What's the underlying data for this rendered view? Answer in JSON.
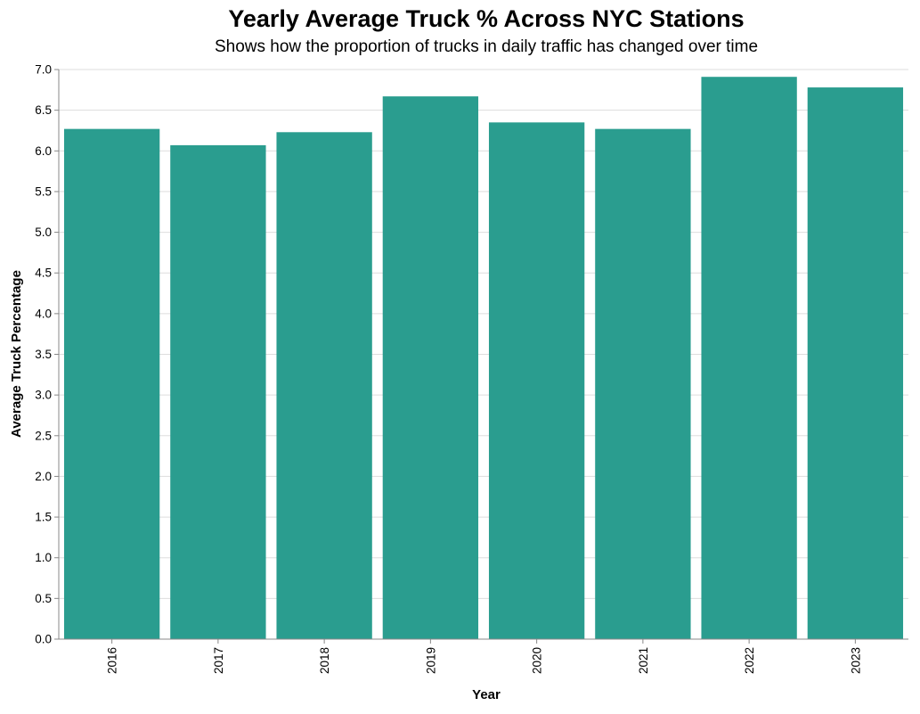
{
  "chart_data": {
    "type": "bar",
    "title": "Yearly Average Truck % Across NYC Stations",
    "subtitle": "Shows how the proportion of trucks in daily traffic has changed over time",
    "xlabel": "Year",
    "ylabel": "Average Truck Percentage",
    "categories": [
      "2016",
      "2017",
      "2018",
      "2019",
      "2020",
      "2021",
      "2022",
      "2023"
    ],
    "values": [
      6.27,
      6.07,
      6.23,
      6.67,
      6.35,
      6.27,
      6.91,
      6.78
    ],
    "ylim": [
      0,
      7.0
    ],
    "yticks": [
      "0.0",
      "0.5",
      "1.0",
      "1.5",
      "2.0",
      "2.5",
      "3.0",
      "3.5",
      "4.0",
      "4.5",
      "5.0",
      "5.5",
      "6.0",
      "6.5",
      "7.0"
    ],
    "grid": true,
    "legend": "none",
    "bar_color": "#2a9d8f"
  }
}
